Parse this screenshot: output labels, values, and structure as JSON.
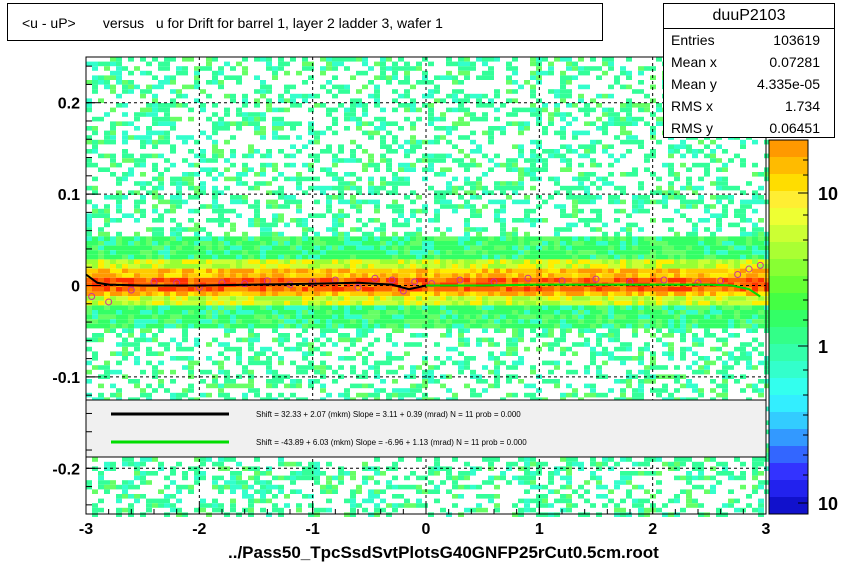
{
  "chart_data": {
    "type": "heatmap",
    "title": "<u - uP>       versus   u for Drift for barrel 1, layer 2 ladder 3, wafer 1",
    "xlim": [
      -3,
      3
    ],
    "ylim": [
      -0.25,
      0.25
    ],
    "x_ticks": [
      "-3",
      "-2",
      "-1",
      "0",
      "1",
      "2",
      "3"
    ],
    "y_ticks": [
      "-0.2",
      "-0.1",
      "0",
      "0.1",
      "0.2"
    ],
    "z_scale": "log",
    "z_ticks": [
      "10",
      "1",
      "10"
    ],
    "grid": true,
    "stats": {
      "name": "duuP2103",
      "rows": [
        {
          "k": "Entries",
          "v": "103619"
        },
        {
          "k": "Mean x",
          "v": "0.07281"
        },
        {
          "k": "Mean y",
          "v": "4.335e-05"
        },
        {
          "k": "RMS x",
          "v": "1.734"
        },
        {
          "k": "RMS y",
          "v": "0.06451"
        }
      ]
    },
    "fits": [
      {
        "color": "#000000",
        "text": "Shift =    32.33 + 2.07 (mkm) Slope =     3.11 + 0.39 (mrad)  N = 11 prob = 0.000",
        "x_range": [
          -3,
          0
        ],
        "x": [
          -3,
          -2.9,
          -2.8,
          -2.5,
          -2,
          -1.5,
          -1,
          -0.6,
          -0.3,
          -0.15,
          0
        ],
        "y": [
          0.012,
          0.003,
          0.001,
          0.0,
          0.0,
          0.001,
          0.002,
          0.003,
          0.001,
          -0.004,
          0.0
        ]
      },
      {
        "color": "#00dd00",
        "text": "Shift =   -43.89 + 6.03 (mkm) Slope =    -6.96 + 1.13 (mrad)  N = 11 prob = 0.000",
        "x_range": [
          0,
          2.9
        ],
        "x": [
          0,
          0.5,
          1,
          1.5,
          2,
          2.5,
          2.7,
          2.85,
          2.95
        ],
        "y": [
          0.0,
          0.0,
          0.001,
          0.001,
          0.001,
          0.001,
          0.0,
          -0.004,
          -0.012
        ]
      }
    ],
    "profile_points": {
      "x": [
        -2.95,
        -2.8,
        -2.6,
        -2.4,
        -2.2,
        -2.0,
        -1.8,
        -1.6,
        -1.4,
        -1.2,
        -1.0,
        -0.8,
        -0.6,
        -0.45,
        -0.3,
        -0.2,
        -0.1,
        0.05,
        0.3,
        0.6,
        0.9,
        1.2,
        1.5,
        1.8,
        2.1,
        2.4,
        2.6,
        2.75,
        2.85,
        2.95
      ],
      "y": [
        -0.012,
        -0.018,
        -0.005,
        0.004,
        0.003,
        -0.002,
        0.003,
        0.002,
        0.005,
        0.001,
        0.004,
        0.006,
        -0.002,
        0.008,
        0.006,
        -0.006,
        0.004,
        0.002,
        0.006,
        0.004,
        0.008,
        0.005,
        0.007,
        0.004,
        0.006,
        0.003,
        0.005,
        0.012,
        0.018,
        0.022
      ]
    },
    "footer": "../Pass50_TpcSsdSvtPlotsG40GNFP25rCut0.5cm.root"
  }
}
